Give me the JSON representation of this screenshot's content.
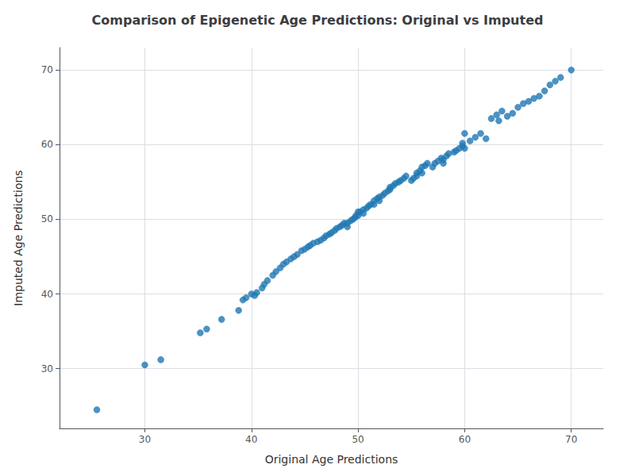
{
  "chart_data": {
    "type": "scatter",
    "title": "Comparison of Epigenetic Age Predictions: Original vs Imputed",
    "xlabel": "Original Age Predictions",
    "ylabel": "Imputed Age Predictions",
    "xlim": [
      22,
      73
    ],
    "ylim": [
      22,
      73
    ],
    "xticks": [
      30,
      40,
      50,
      60,
      70
    ],
    "yticks": [
      30,
      40,
      50,
      60,
      70
    ],
    "color": "#1f77b4",
    "marker": "circle",
    "grid": true,
    "x": [
      25.5,
      30.0,
      31.5,
      35.2,
      35.8,
      37.2,
      38.8,
      39.2,
      39.5,
      40.0,
      40.3,
      40.5,
      41.0,
      41.2,
      41.5,
      42.0,
      42.3,
      42.7,
      43.0,
      43.3,
      43.7,
      44.0,
      44.3,
      44.7,
      45.0,
      45.3,
      45.5,
      45.8,
      46.2,
      46.5,
      46.8,
      47.0,
      47.3,
      47.5,
      47.8,
      48.0,
      48.3,
      48.5,
      48.7,
      49.0,
      49.0,
      49.3,
      49.5,
      49.7,
      49.8,
      50.0,
      50.0,
      50.2,
      50.5,
      50.5,
      50.8,
      51.0,
      51.2,
      51.5,
      51.5,
      51.8,
      52.0,
      52.0,
      52.3,
      52.5,
      52.8,
      53.0,
      53.0,
      53.3,
      53.5,
      53.8,
      54.0,
      54.3,
      54.5,
      55.0,
      55.2,
      55.5,
      55.5,
      55.8,
      56.0,
      56.0,
      56.3,
      56.5,
      57.0,
      57.2,
      57.5,
      57.8,
      58.0,
      58.0,
      58.3,
      58.5,
      59.0,
      59.2,
      59.5,
      59.8,
      59.8,
      60.0,
      60.0,
      60.5,
      61.0,
      61.5,
      62.0,
      62.5,
      63.0,
      63.2,
      63.5,
      64.0,
      64.5,
      65.0,
      65.5,
      66.0,
      66.5,
      67.0,
      67.5,
      68.0,
      68.5,
      69.0,
      70.0
    ],
    "y": [
      24.5,
      30.5,
      31.2,
      34.8,
      35.3,
      36.6,
      37.8,
      39.2,
      39.5,
      40.0,
      39.8,
      40.2,
      40.8,
      41.3,
      41.8,
      42.5,
      43.0,
      43.5,
      44.0,
      44.3,
      44.7,
      45.0,
      45.3,
      45.8,
      46.0,
      46.3,
      46.5,
      46.8,
      47.0,
      47.2,
      47.5,
      47.8,
      48.0,
      48.2,
      48.5,
      48.8,
      49.0,
      49.2,
      49.5,
      49.0,
      49.5,
      49.8,
      50.0,
      50.2,
      50.5,
      50.5,
      51.0,
      51.0,
      50.8,
      51.3,
      51.5,
      51.8,
      52.0,
      52.0,
      52.5,
      52.8,
      52.5,
      53.0,
      53.2,
      53.5,
      53.8,
      54.0,
      54.3,
      54.5,
      54.8,
      55.0,
      55.2,
      55.5,
      55.8,
      55.2,
      55.5,
      55.8,
      56.2,
      56.5,
      56.2,
      57.0,
      57.2,
      57.5,
      57.0,
      57.5,
      57.8,
      58.2,
      57.5,
      58.0,
      58.5,
      58.8,
      59.0,
      59.2,
      59.5,
      59.8,
      60.2,
      59.5,
      61.5,
      60.5,
      61.0,
      61.5,
      60.8,
      63.5,
      64.0,
      63.2,
      64.5,
      63.8,
      64.2,
      65.0,
      65.5,
      65.8,
      66.2,
      66.5,
      67.2,
      68.0,
      68.5,
      69.0,
      70.0
    ]
  }
}
